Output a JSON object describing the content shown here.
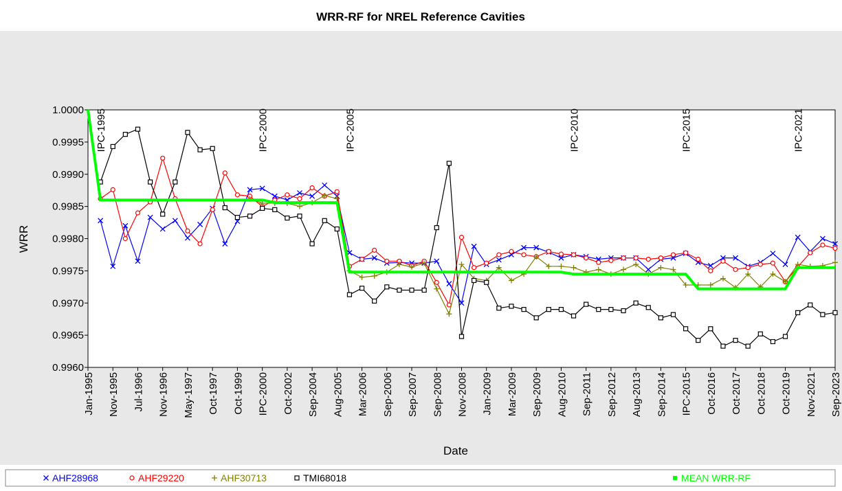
{
  "chart_data": {
    "type": "line",
    "title": "WRR-RF for NREL Reference Cavities",
    "x_label": "Date",
    "y_label": "WRR",
    "annotations": [
      "IPC-1995",
      "IPC-2000",
      "IPC-2005",
      "IPC-2010",
      "IPC-2015",
      "IPC-2021"
    ],
    "categories": [
      "Jan-1995",
      null,
      "Nov-1995",
      null,
      "Jul-1996",
      null,
      "Nov-1996",
      null,
      "May-1997",
      null,
      "Oct-1997",
      null,
      "Oct-1999",
      null,
      "IPC-2000",
      null,
      "Oct-2002",
      null,
      "Sep-2004",
      null,
      "Aug-2005",
      null,
      "Mar-2006",
      null,
      "Sep-2006",
      null,
      "Sep-2007",
      null,
      "Sep-2008",
      null,
      "Nov-2008",
      null,
      "Jan-2009",
      null,
      "Mar-2009",
      null,
      "Sep-2009",
      null,
      "Aug-2010",
      null,
      "Sep-2011",
      null,
      "Sep-2012",
      null,
      "Aug-2013",
      null,
      "Sep-2014",
      null,
      "IPC-2015",
      null,
      "Oct-2016",
      null,
      "Oct-2017",
      null,
      "Oct-2018",
      null,
      "Oct-2019",
      null,
      "Nov-2021",
      null,
      "Sep-2023"
    ],
    "ylim": [
      0.996,
      1.0
    ],
    "yticks": [
      {
        "value": 0.996,
        "label": "0.9960"
      },
      {
        "value": 0.9965,
        "label": "0.9965"
      },
      {
        "value": 0.997,
        "label": "0.9970"
      },
      {
        "value": 0.9975,
        "label": "0.9975"
      },
      {
        "value": 0.998,
        "label": "0.9980"
      },
      {
        "value": 0.9985,
        "label": "0.9985"
      },
      {
        "value": 0.999,
        "label": "0.9990"
      },
      {
        "value": 0.9995,
        "label": "0.9995"
      },
      {
        "value": 1.0,
        "label": "1.0000"
      }
    ],
    "series": [
      {
        "name": "AHF28968",
        "color": "#0000ff",
        "marker": "x",
        "values": [
          null,
          0.99828,
          0.99757,
          0.9982,
          0.99765,
          0.99833,
          0.99815,
          0.99828,
          0.99801,
          0.99822,
          0.99847,
          0.99792,
          0.99827,
          0.99876,
          0.99878,
          0.99866,
          0.9986,
          0.99871,
          0.99866,
          0.99883,
          0.99866,
          0.99778,
          0.99768,
          0.9977,
          0.99762,
          0.99763,
          0.99762,
          0.99762,
          0.99765,
          0.9973,
          0.997,
          0.99788,
          0.9976,
          0.99767,
          0.99775,
          0.99786,
          0.99786,
          0.99779,
          0.9977,
          0.99775,
          0.99772,
          0.99768,
          0.9977,
          0.9977,
          0.9977,
          0.99752,
          0.99768,
          0.9977,
          0.99777,
          0.99763,
          0.99758,
          0.9977,
          0.9977,
          0.99757,
          0.99763,
          0.99777,
          0.9976,
          0.99802,
          0.9978,
          0.998,
          0.99792
        ]
      },
      {
        "name": "AHF29220",
        "color": "#ff0000",
        "marker": "o",
        "values": [
          null,
          0.99862,
          0.99876,
          0.998,
          0.9984,
          0.99857,
          0.99925,
          0.99862,
          0.99812,
          0.99792,
          0.99845,
          0.99902,
          0.99868,
          0.99866,
          0.9985,
          0.9986,
          0.99868,
          0.99862,
          0.99879,
          0.99866,
          0.99873,
          0.99757,
          0.99768,
          0.99782,
          0.99765,
          0.99765,
          0.99758,
          0.99765,
          0.99732,
          0.99697,
          0.99802,
          0.99755,
          0.99762,
          0.99775,
          0.9978,
          0.99775,
          0.99772,
          0.9978,
          0.99776,
          0.99775,
          0.9977,
          0.99763,
          0.99766,
          0.9977,
          0.9977,
          0.99768,
          0.9977,
          0.99775,
          0.99778,
          0.99768,
          0.9975,
          0.99765,
          0.99752,
          0.99755,
          0.9976,
          0.99762,
          0.99733,
          0.99756,
          0.99778,
          0.9979,
          0.99785
        ]
      },
      {
        "name": "AHF30713",
        "color": "#808000",
        "marker": "+",
        "values": [
          null,
          null,
          null,
          null,
          null,
          null,
          null,
          null,
          null,
          null,
          null,
          null,
          null,
          0.99862,
          0.99855,
          0.99855,
          0.99855,
          0.9985,
          0.99856,
          0.99867,
          0.99862,
          0.9975,
          0.9974,
          0.99742,
          0.99748,
          0.9976,
          0.99756,
          0.99762,
          0.99722,
          0.99683,
          0.9976,
          0.99738,
          0.99735,
          0.99755,
          0.99735,
          0.99745,
          0.99772,
          0.99757,
          0.99757,
          0.99755,
          0.99748,
          0.99752,
          0.99745,
          0.99752,
          0.9976,
          0.99745,
          0.99755,
          0.99752,
          0.99728,
          0.99728,
          0.99728,
          0.99738,
          0.99724,
          0.99745,
          0.99725,
          0.99745,
          0.99733,
          0.9976,
          0.99757,
          0.99758,
          0.99763
        ]
      },
      {
        "name": "TMI68018",
        "color": "#000000",
        "marker": "s",
        "values": [
          null,
          0.99888,
          0.99943,
          0.99962,
          0.9997,
          0.99888,
          0.99838,
          0.99888,
          0.99965,
          0.99938,
          0.9994,
          0.99848,
          0.99833,
          0.99835,
          0.99847,
          0.99845,
          0.99832,
          0.99835,
          0.99792,
          0.99828,
          0.99815,
          0.99713,
          0.99723,
          0.99703,
          0.99725,
          0.9972,
          0.9972,
          0.9972,
          0.99817,
          0.99917,
          0.99648,
          0.99735,
          0.99732,
          0.99692,
          0.99695,
          0.9969,
          0.99677,
          0.9969,
          0.9969,
          0.9968,
          0.99698,
          0.9969,
          0.9969,
          0.99688,
          0.997,
          0.99693,
          0.99677,
          0.99682,
          0.9966,
          0.99642,
          0.9966,
          0.99633,
          0.99642,
          0.99633,
          0.99652,
          0.9964,
          0.99648,
          0.99685,
          0.99697,
          0.99682,
          0.99685
        ]
      },
      {
        "name": "MEAN WRR-RF",
        "color": "#00ff00",
        "marker": "none",
        "values": [
          1.0,
          0.9986,
          0.9986,
          0.9986,
          0.9986,
          0.9986,
          0.9986,
          0.9986,
          0.9986,
          0.9986,
          0.9986,
          0.9986,
          0.9986,
          0.9986,
          0.9986,
          0.99856,
          0.99856,
          0.99856,
          0.99856,
          0.99856,
          0.99856,
          0.99748,
          0.99748,
          0.99748,
          0.99748,
          0.99748,
          0.99748,
          0.99748,
          0.99748,
          0.99748,
          0.99748,
          0.99748,
          0.99748,
          0.99748,
          0.99748,
          0.99748,
          0.99748,
          0.99748,
          0.99748,
          0.99745,
          0.99745,
          0.99745,
          0.99745,
          0.99745,
          0.99745,
          0.99745,
          0.99745,
          0.99745,
          0.99745,
          0.99722,
          0.99722,
          0.99722,
          0.99722,
          0.99722,
          0.99722,
          0.99722,
          0.99722,
          0.99755,
          0.99755,
          0.99755,
          0.99755
        ]
      }
    ]
  }
}
